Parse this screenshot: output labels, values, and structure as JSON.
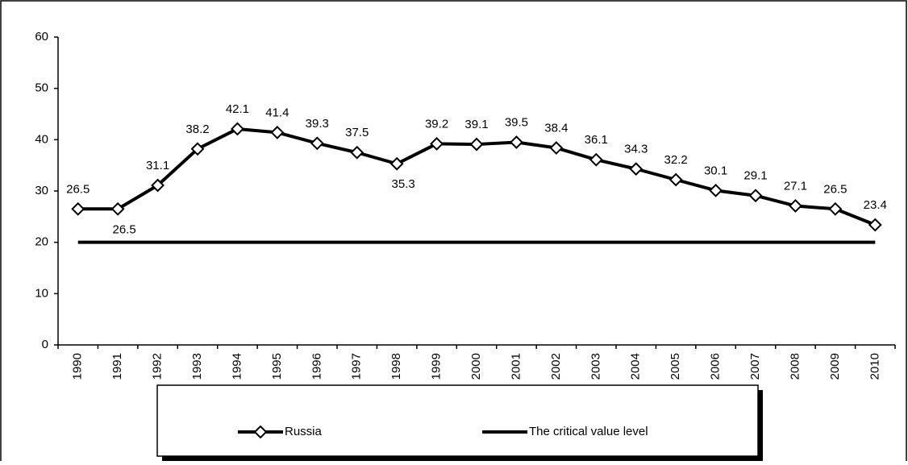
{
  "chart_data": {
    "type": "line",
    "categories": [
      "1990",
      "1991",
      "1992",
      "1993",
      "1994",
      "1995",
      "1996",
      "1997",
      "1998",
      "1999",
      "2000",
      "2001",
      "2002",
      "2003",
      "2004",
      "2005",
      "2006",
      "2007",
      "2008",
      "2009",
      "2010"
    ],
    "series": [
      {
        "name": "Russia",
        "color": "#000000",
        "marker": "diamond",
        "values": [
          26.5,
          26.5,
          31.1,
          38.2,
          42.1,
          41.4,
          39.3,
          37.5,
          35.3,
          39.2,
          39.1,
          39.5,
          38.4,
          36.1,
          34.3,
          32.2,
          30.1,
          29.1,
          27.1,
          26.5,
          23.4
        ]
      },
      {
        "name": "The critical value level",
        "color": "#000000",
        "values": [
          20,
          20,
          20,
          20,
          20,
          20,
          20,
          20,
          20,
          20,
          20,
          20,
          20,
          20,
          20,
          20,
          20,
          20,
          20,
          20,
          20
        ]
      }
    ],
    "ylim": [
      0,
      60
    ],
    "yticks": [
      0,
      10,
      20,
      30,
      40,
      50,
      60
    ],
    "data_labels": [
      true,
      false
    ],
    "legend": "bottom"
  }
}
